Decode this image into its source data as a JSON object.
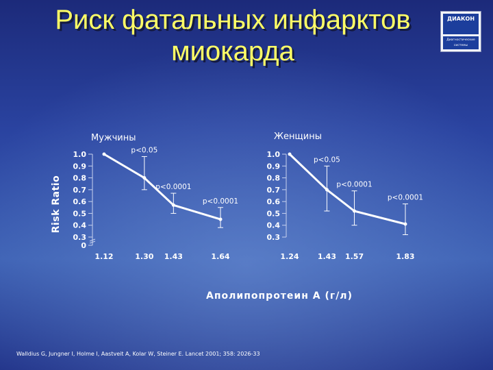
{
  "slide": {
    "title_line1": "Риск фатальных инфарктов",
    "title_line2": "миокарда",
    "logo_name": "ДИАКОН",
    "logo_subtitle_line1": "Диагностические",
    "logo_subtitle_line2": "системы",
    "citation": "Walldius G, Jungner I, Holme I, Aastveit A, Kolar W, Steiner E. Lancet 2001; 358: 2026-33"
  },
  "colors": {
    "background_top": "#1f2d80",
    "background_bottom": "#3a5aa6",
    "title": "#ffff66",
    "axis_text": "#ffffff",
    "line": "#ffffff"
  },
  "chart_data": [
    {
      "type": "line",
      "title": "Мужчины",
      "ylabel": "Risk Ratio",
      "xlabel": "Аполипопротеин А (г/л)",
      "yticks": [
        "0",
        "0.3",
        "0.4",
        "0.5",
        "0.6",
        "0.7",
        "0.8",
        "0.9",
        "1.0"
      ],
      "ytick_values": [
        0,
        0.3,
        0.4,
        0.5,
        0.6,
        0.7,
        0.8,
        0.9,
        1.0
      ],
      "axis_break": true,
      "xticks": [
        "1.12",
        "1.30",
        "1.43",
        "1.64"
      ],
      "x": [
        1.12,
        1.3,
        1.43,
        1.64
      ],
      "series": [
        {
          "values": [
            1.0,
            0.8,
            0.57,
            0.45
          ],
          "ci_low": [
            null,
            0.7,
            0.5,
            0.38
          ],
          "ci_high": [
            null,
            0.98,
            0.67,
            0.55
          ],
          "annotations": [
            "",
            "p<0.05",
            "p<0.0001",
            "p<0.0001"
          ]
        }
      ],
      "grid": false
    },
    {
      "type": "line",
      "title": "Женщины",
      "yticks": [
        "0.3",
        "0.4",
        "0.5",
        "0.6",
        "0.7",
        "0.8",
        "0.9",
        "1.0"
      ],
      "ytick_values": [
        0.3,
        0.4,
        0.5,
        0.6,
        0.7,
        0.8,
        0.9,
        1.0
      ],
      "xticks": [
        "1.24",
        "1.43",
        "1.57",
        "1.83"
      ],
      "x": [
        1.24,
        1.43,
        1.57,
        1.83
      ],
      "series": [
        {
          "values": [
            1.0,
            0.7,
            0.52,
            0.41
          ],
          "ci_low": [
            null,
            0.52,
            0.4,
            0.32
          ],
          "ci_high": [
            null,
            0.9,
            0.69,
            0.58
          ],
          "annotations": [
            "",
            "p<0.05",
            "p<0.0001",
            "p<0.0001"
          ]
        }
      ],
      "grid": false
    }
  ]
}
